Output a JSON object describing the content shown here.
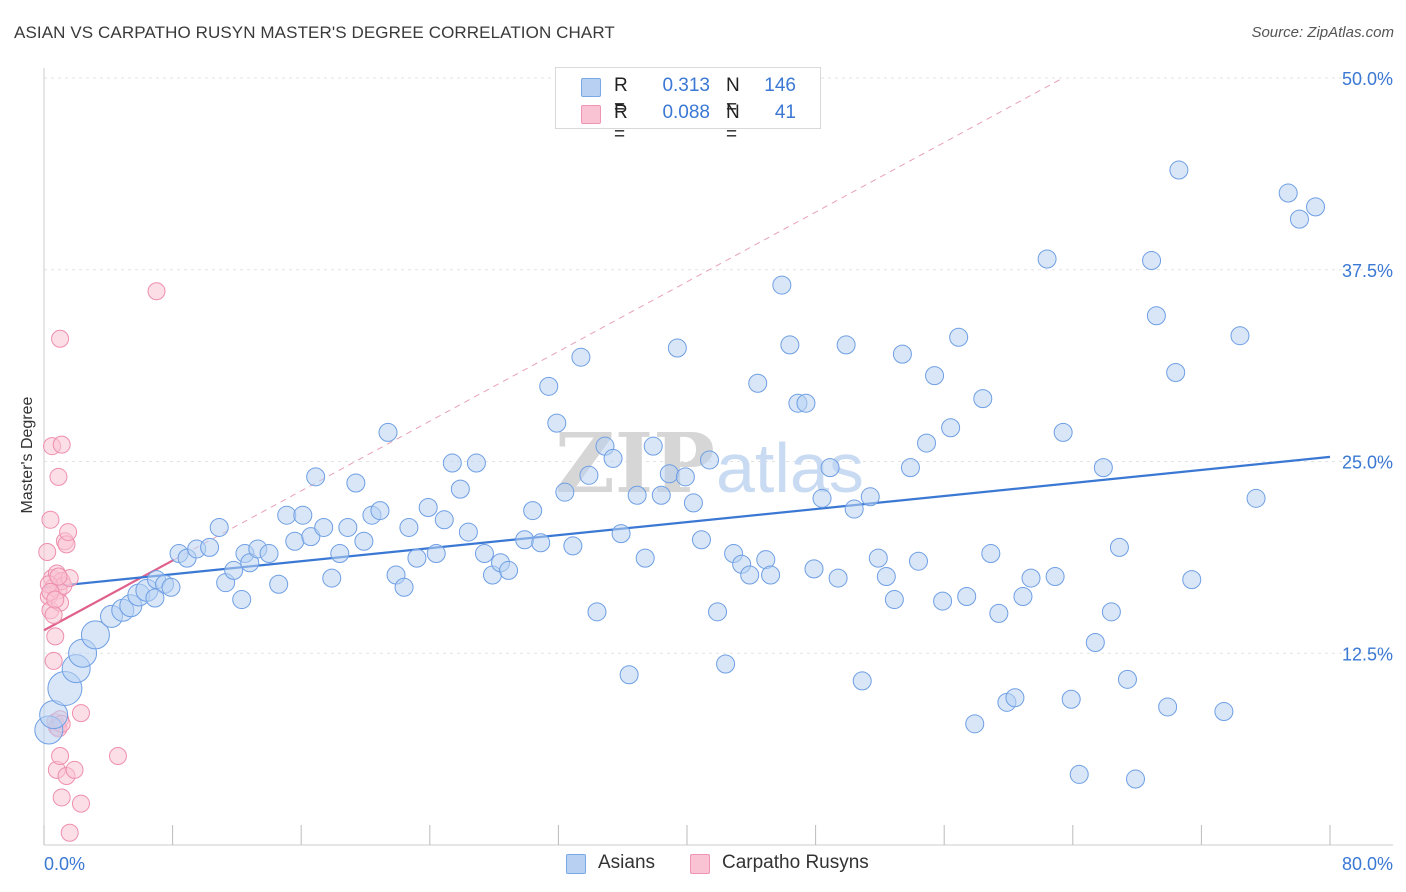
{
  "header": {
    "title": "ASIAN VS CARPATHO RUSYN MASTER'S DEGREE CORRELATION CHART",
    "source": "Source: ZipAtlas.com"
  },
  "watermark": {
    "zip": "ZIP",
    "atlas": "atlas"
  },
  "legend": {
    "r_label": "R =",
    "n_label": "N =",
    "rows": [
      {
        "series": "Asians",
        "r": "0.313",
        "n": "146",
        "fill": "#b8d1f3",
        "stroke": "#7aa7e8"
      },
      {
        "series": "Carpatho Rusyns",
        "r": "0.088",
        "n": "41",
        "fill": "#f9c3d3",
        "stroke": "#ef94b2"
      }
    ]
  },
  "bottom_legend": {
    "items": [
      "Asians",
      "Carpatho Rusyns"
    ]
  },
  "chart_data": {
    "type": "scatter",
    "title": "ASIAN VS CARPATHO RUSYN MASTER'S DEGREE CORRELATION CHART",
    "xlabel": "",
    "ylabel": "Master's Degree",
    "xlim": [
      0,
      80
    ],
    "ylim": [
      0,
      50
    ],
    "x_tick_labels": [
      "0.0%",
      "80.0%"
    ],
    "y_ticks": [
      12.5,
      25.0,
      37.5,
      50.0
    ],
    "y_tick_labels": [
      "12.5%",
      "25.0%",
      "37.5%",
      "50.0%"
    ],
    "grid": true,
    "legend_position": "top-center",
    "colors": {
      "asians": "#3a78d4",
      "rusyns": "#e0608c",
      "asians_fill": "#b8d1f3",
      "rusyns_fill": "#f9c3d3",
      "axis_text": "#3a78d4"
    },
    "series": [
      {
        "name": "Asians",
        "color": "#3a78d4",
        "trend": {
          "x": [
            0,
            80
          ],
          "y": [
            16.8,
            25.3
          ]
        },
        "points": [
          {
            "x": 0.3,
            "y": 7.5,
            "s": 2
          },
          {
            "x": 0.6,
            "y": 8.5,
            "s": 2
          },
          {
            "x": 1.3,
            "y": 10.2,
            "s": 3
          },
          {
            "x": 2.0,
            "y": 11.5,
            "s": 2
          },
          {
            "x": 2.4,
            "y": 12.5,
            "s": 2
          },
          {
            "x": 3.2,
            "y": 13.7,
            "s": 2
          },
          {
            "x": 4.2,
            "y": 14.9,
            "s": 1
          },
          {
            "x": 4.9,
            "y": 15.3,
            "s": 1
          },
          {
            "x": 5.4,
            "y": 15.6,
            "s": 1
          },
          {
            "x": 5.9,
            "y": 16.3,
            "s": 1
          },
          {
            "x": 6.4,
            "y": 16.6,
            "s": 1
          },
          {
            "x": 7.0,
            "y": 17.3,
            "s": 0
          },
          {
            "x": 7.5,
            "y": 17.0,
            "s": 0
          },
          {
            "x": 6.9,
            "y": 16.1,
            "s": 0
          },
          {
            "x": 7.9,
            "y": 16.8,
            "s": 0
          },
          {
            "x": 8.4,
            "y": 19.0,
            "s": 0
          },
          {
            "x": 8.9,
            "y": 18.7,
            "s": 0
          },
          {
            "x": 9.5,
            "y": 19.3,
            "s": 0
          },
          {
            "x": 10.3,
            "y": 19.4,
            "s": 0
          },
          {
            "x": 10.9,
            "y": 20.7,
            "s": 0
          },
          {
            "x": 11.3,
            "y": 17.1,
            "s": 0
          },
          {
            "x": 11.8,
            "y": 17.9,
            "s": 0
          },
          {
            "x": 12.3,
            "y": 16.0,
            "s": 0
          },
          {
            "x": 12.5,
            "y": 19.0,
            "s": 0
          },
          {
            "x": 12.8,
            "y": 18.4,
            "s": 0
          },
          {
            "x": 13.3,
            "y": 19.3,
            "s": 0
          },
          {
            "x": 14.0,
            "y": 19.0,
            "s": 0
          },
          {
            "x": 14.6,
            "y": 17.0,
            "s": 0
          },
          {
            "x": 15.1,
            "y": 21.5,
            "s": 0
          },
          {
            "x": 15.6,
            "y": 19.8,
            "s": 0
          },
          {
            "x": 16.1,
            "y": 21.5,
            "s": 0
          },
          {
            "x": 16.6,
            "y": 20.1,
            "s": 0
          },
          {
            "x": 16.9,
            "y": 24.0,
            "s": 0
          },
          {
            "x": 17.4,
            "y": 20.7,
            "s": 0
          },
          {
            "x": 17.9,
            "y": 17.4,
            "s": 0
          },
          {
            "x": 18.4,
            "y": 19.0,
            "s": 0
          },
          {
            "x": 18.9,
            "y": 20.7,
            "s": 0
          },
          {
            "x": 19.4,
            "y": 23.6,
            "s": 0
          },
          {
            "x": 19.9,
            "y": 19.8,
            "s": 0
          },
          {
            "x": 20.4,
            "y": 21.5,
            "s": 0
          },
          {
            "x": 20.9,
            "y": 21.8,
            "s": 0
          },
          {
            "x": 21.4,
            "y": 26.9,
            "s": 0
          },
          {
            "x": 21.9,
            "y": 17.6,
            "s": 0
          },
          {
            "x": 22.4,
            "y": 16.8,
            "s": 0
          },
          {
            "x": 22.7,
            "y": 20.7,
            "s": 0
          },
          {
            "x": 23.2,
            "y": 18.7,
            "s": 0
          },
          {
            "x": 23.9,
            "y": 22.0,
            "s": 0
          },
          {
            "x": 24.4,
            "y": 19.0,
            "s": 0
          },
          {
            "x": 24.9,
            "y": 21.2,
            "s": 0
          },
          {
            "x": 25.4,
            "y": 24.9,
            "s": 0
          },
          {
            "x": 25.9,
            "y": 23.2,
            "s": 0
          },
          {
            "x": 26.4,
            "y": 20.4,
            "s": 0
          },
          {
            "x": 26.9,
            "y": 24.9,
            "s": 0
          },
          {
            "x": 27.4,
            "y": 19.0,
            "s": 0
          },
          {
            "x": 27.9,
            "y": 17.6,
            "s": 0
          },
          {
            "x": 28.4,
            "y": 18.4,
            "s": 0
          },
          {
            "x": 28.9,
            "y": 17.9,
            "s": 0
          },
          {
            "x": 29.9,
            "y": 19.9,
            "s": 0
          },
          {
            "x": 30.4,
            "y": 21.8,
            "s": 0
          },
          {
            "x": 30.9,
            "y": 19.7,
            "s": 0
          },
          {
            "x": 31.4,
            "y": 29.9,
            "s": 0
          },
          {
            "x": 31.9,
            "y": 27.5,
            "s": 0
          },
          {
            "x": 32.4,
            "y": 23.0,
            "s": 0
          },
          {
            "x": 32.9,
            "y": 19.5,
            "s": 0
          },
          {
            "x": 33.4,
            "y": 31.8,
            "s": 0
          },
          {
            "x": 33.9,
            "y": 24.1,
            "s": 0
          },
          {
            "x": 34.4,
            "y": 15.2,
            "s": 0
          },
          {
            "x": 34.9,
            "y": 26.0,
            "s": 0
          },
          {
            "x": 35.4,
            "y": 25.2,
            "s": 0
          },
          {
            "x": 35.9,
            "y": 20.3,
            "s": 0
          },
          {
            "x": 36.4,
            "y": 11.1,
            "s": 0
          },
          {
            "x": 36.9,
            "y": 22.8,
            "s": 0
          },
          {
            "x": 37.4,
            "y": 18.7,
            "s": 0
          },
          {
            "x": 37.9,
            "y": 26.0,
            "s": 0
          },
          {
            "x": 38.4,
            "y": 22.8,
            "s": 0
          },
          {
            "x": 38.9,
            "y": 24.2,
            "s": 0
          },
          {
            "x": 39.4,
            "y": 32.4,
            "s": 0
          },
          {
            "x": 39.9,
            "y": 24.0,
            "s": 0
          },
          {
            "x": 40.4,
            "y": 22.3,
            "s": 0
          },
          {
            "x": 40.9,
            "y": 19.9,
            "s": 0
          },
          {
            "x": 41.4,
            "y": 25.1,
            "s": 0
          },
          {
            "x": 41.9,
            "y": 15.2,
            "s": 0
          },
          {
            "x": 42.4,
            "y": 11.8,
            "s": 0
          },
          {
            "x": 42.9,
            "y": 19.0,
            "s": 0
          },
          {
            "x": 43.4,
            "y": 18.3,
            "s": 0
          },
          {
            "x": 43.9,
            "y": 17.6,
            "s": 0
          },
          {
            "x": 44.4,
            "y": 30.1,
            "s": 0
          },
          {
            "x": 44.9,
            "y": 18.6,
            "s": 0
          },
          {
            "x": 45.2,
            "y": 17.6,
            "s": 0
          },
          {
            "x": 45.9,
            "y": 36.5,
            "s": 0
          },
          {
            "x": 46.4,
            "y": 32.6,
            "s": 0
          },
          {
            "x": 46.9,
            "y": 28.8,
            "s": 0
          },
          {
            "x": 47.4,
            "y": 28.8,
            "s": 0
          },
          {
            "x": 47.9,
            "y": 18.0,
            "s": 0
          },
          {
            "x": 48.4,
            "y": 22.6,
            "s": 0
          },
          {
            "x": 48.9,
            "y": 24.6,
            "s": 0
          },
          {
            "x": 49.4,
            "y": 17.4,
            "s": 0
          },
          {
            "x": 49.9,
            "y": 32.6,
            "s": 0
          },
          {
            "x": 50.4,
            "y": 21.9,
            "s": 0
          },
          {
            "x": 50.9,
            "y": 10.7,
            "s": 0
          },
          {
            "x": 51.4,
            "y": 22.7,
            "s": 0
          },
          {
            "x": 51.9,
            "y": 18.7,
            "s": 0
          },
          {
            "x": 52.4,
            "y": 17.5,
            "s": 0
          },
          {
            "x": 52.9,
            "y": 16.0,
            "s": 0
          },
          {
            "x": 53.4,
            "y": 32.0,
            "s": 0
          },
          {
            "x": 53.9,
            "y": 24.6,
            "s": 0
          },
          {
            "x": 54.4,
            "y": 18.5,
            "s": 0
          },
          {
            "x": 54.9,
            "y": 26.2,
            "s": 0
          },
          {
            "x": 55.4,
            "y": 30.6,
            "s": 0
          },
          {
            "x": 55.9,
            "y": 15.9,
            "s": 0
          },
          {
            "x": 56.4,
            "y": 27.2,
            "s": 0
          },
          {
            "x": 56.9,
            "y": 33.1,
            "s": 0
          },
          {
            "x": 57.4,
            "y": 16.2,
            "s": 0
          },
          {
            "x": 57.9,
            "y": 7.9,
            "s": 0
          },
          {
            "x": 58.4,
            "y": 29.1,
            "s": 0
          },
          {
            "x": 58.9,
            "y": 19.0,
            "s": 0
          },
          {
            "x": 59.4,
            "y": 15.1,
            "s": 0
          },
          {
            "x": 59.9,
            "y": 9.3,
            "s": 0
          },
          {
            "x": 60.4,
            "y": 9.6,
            "s": 0
          },
          {
            "x": 60.9,
            "y": 16.2,
            "s": 0
          },
          {
            "x": 61.4,
            "y": 17.4,
            "s": 0
          },
          {
            "x": 62.4,
            "y": 38.2,
            "s": 0
          },
          {
            "x": 62.9,
            "y": 17.5,
            "s": 0
          },
          {
            "x": 63.4,
            "y": 26.9,
            "s": 0
          },
          {
            "x": 63.9,
            "y": 9.5,
            "s": 0
          },
          {
            "x": 64.4,
            "y": 4.6,
            "s": 0
          },
          {
            "x": 65.4,
            "y": 13.2,
            "s": 0
          },
          {
            "x": 65.9,
            "y": 24.6,
            "s": 0
          },
          {
            "x": 66.4,
            "y": 15.2,
            "s": 0
          },
          {
            "x": 66.9,
            "y": 19.4,
            "s": 0
          },
          {
            "x": 67.4,
            "y": 10.8,
            "s": 0
          },
          {
            "x": 67.9,
            "y": 4.3,
            "s": 0
          },
          {
            "x": 68.9,
            "y": 38.1,
            "s": 0
          },
          {
            "x": 69.2,
            "y": 34.5,
            "s": 0
          },
          {
            "x": 69.9,
            "y": 9.0,
            "s": 0
          },
          {
            "x": 70.4,
            "y": 30.8,
            "s": 0
          },
          {
            "x": 70.6,
            "y": 44.0,
            "s": 0
          },
          {
            "x": 71.4,
            "y": 17.3,
            "s": 0
          },
          {
            "x": 73.4,
            "y": 8.7,
            "s": 0
          },
          {
            "x": 74.4,
            "y": 33.2,
            "s": 0
          },
          {
            "x": 75.4,
            "y": 22.6,
            "s": 0
          },
          {
            "x": 77.4,
            "y": 42.5,
            "s": 0
          },
          {
            "x": 78.1,
            "y": 40.8,
            "s": 0
          },
          {
            "x": 79.1,
            "y": 41.6,
            "s": 0
          }
        ]
      },
      {
        "name": "Carpatho Rusyns",
        "color": "#e0608c",
        "trend": {
          "x": [
            0,
            8.1
          ],
          "y": [
            14.0,
            18.6
          ]
        },
        "points": [
          {
            "x": 0.2,
            "y": 19.1
          },
          {
            "x": 0.3,
            "y": 16.2
          },
          {
            "x": 0.4,
            "y": 15.3
          },
          {
            "x": 0.5,
            "y": 17.4
          },
          {
            "x": 0.6,
            "y": 16.8
          },
          {
            "x": 0.7,
            "y": 13.6
          },
          {
            "x": 0.8,
            "y": 17.7
          },
          {
            "x": 0.9,
            "y": 16.6
          },
          {
            "x": 1.0,
            "y": 15.8
          },
          {
            "x": 1.1,
            "y": 17.2
          },
          {
            "x": 0.4,
            "y": 21.2
          },
          {
            "x": 0.5,
            "y": 26.0
          },
          {
            "x": 0.9,
            "y": 24.0
          },
          {
            "x": 1.0,
            "y": 33.0
          },
          {
            "x": 1.1,
            "y": 26.1
          },
          {
            "x": 1.2,
            "y": 16.9
          },
          {
            "x": 1.3,
            "y": 19.8
          },
          {
            "x": 1.4,
            "y": 19.6
          },
          {
            "x": 1.5,
            "y": 20.4
          },
          {
            "x": 1.6,
            "y": 17.4
          },
          {
            "x": 0.6,
            "y": 12.0
          },
          {
            "x": 0.7,
            "y": 8.0
          },
          {
            "x": 0.8,
            "y": 7.7
          },
          {
            "x": 0.9,
            "y": 7.6
          },
          {
            "x": 1.0,
            "y": 8.2
          },
          {
            "x": 1.1,
            "y": 7.9
          },
          {
            "x": 0.8,
            "y": 4.9
          },
          {
            "x": 1.0,
            "y": 5.8
          },
          {
            "x": 1.1,
            "y": 3.1
          },
          {
            "x": 1.4,
            "y": 4.5
          },
          {
            "x": 1.6,
            "y": 0.8
          },
          {
            "x": 1.9,
            "y": 4.9
          },
          {
            "x": 2.3,
            "y": 2.7
          },
          {
            "x": 2.3,
            "y": 8.6
          },
          {
            "x": 4.6,
            "y": 5.8
          },
          {
            "x": 7.0,
            "y": 36.1
          },
          {
            "x": 0.3,
            "y": 17.0
          },
          {
            "x": 0.6,
            "y": 15.0
          },
          {
            "x": 0.4,
            "y": 16.5
          },
          {
            "x": 0.9,
            "y": 17.5
          },
          {
            "x": 0.7,
            "y": 16.0
          }
        ]
      }
    ]
  }
}
